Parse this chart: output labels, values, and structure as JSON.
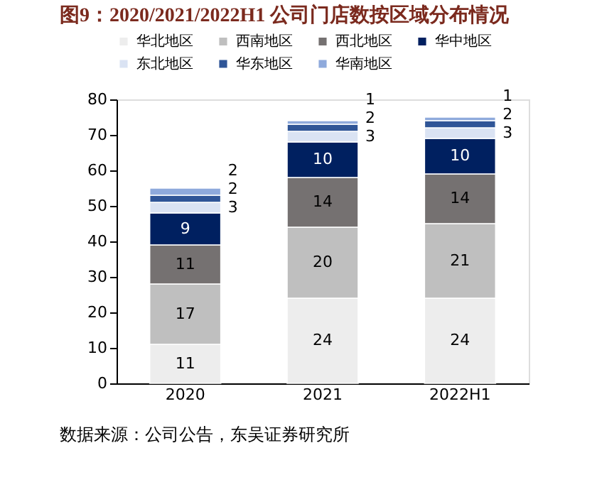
{
  "chart_data": {
    "type": "bar",
    "stacked": true,
    "title": "图9：2020/2021/2022H1 公司门店数按区域分布情况",
    "categories": [
      "2020",
      "2021",
      "2022H1"
    ],
    "series": [
      {
        "name": "华北地区",
        "color": "#ededed",
        "values": [
          11,
          24,
          24
        ]
      },
      {
        "name": "西南地区",
        "color": "#bfbfbf",
        "values": [
          17,
          20,
          21
        ]
      },
      {
        "name": "西北地区",
        "color": "#757171",
        "values": [
          11,
          14,
          14
        ]
      },
      {
        "name": "华中地区",
        "color": "#002060",
        "values": [
          9,
          10,
          10
        ]
      },
      {
        "name": "东北地区",
        "color": "#dae3f3",
        "values": [
          3,
          3,
          3
        ]
      },
      {
        "name": "华东地区",
        "color": "#2f5597",
        "values": [
          2,
          2,
          2
        ]
      },
      {
        "name": "华南地区",
        "color": "#8faadc",
        "values": [
          2,
          1,
          1
        ]
      }
    ],
    "ylim": [
      0,
      80
    ],
    "yticks": [
      0,
      10,
      20,
      30,
      40,
      50,
      60,
      70,
      80
    ],
    "grid": false,
    "legend": "top",
    "data_labels": true,
    "annotations": [
      "数据来源：公司公告，东吴证券研究所"
    ]
  }
}
